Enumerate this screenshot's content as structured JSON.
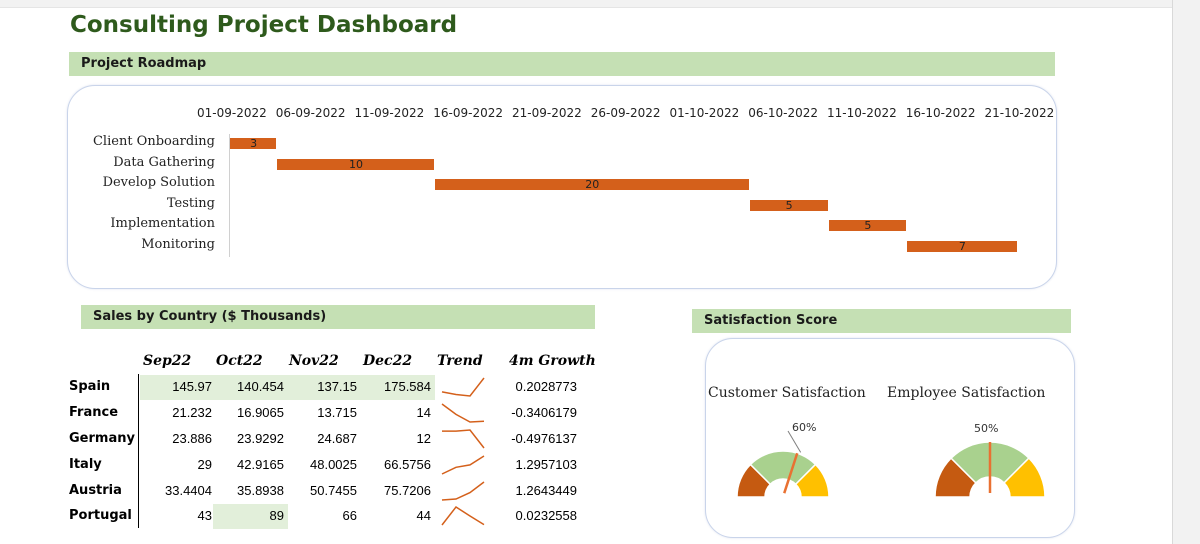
{
  "dashboard": {
    "title": "Consulting Project Dashboard"
  },
  "roadmap": {
    "header": "Project Roadmap",
    "dates": [
      "01-09-2022",
      "06-09-2022",
      "11-09-2022",
      "16-09-2022",
      "21-09-2022",
      "26-09-2022",
      "01-10-2022",
      "06-10-2022",
      "11-10-2022",
      "16-10-2022",
      "21-10-2022"
    ],
    "tasks": [
      {
        "name": "Client Onboarding",
        "start_day": 0,
        "duration": 3,
        "label": "3"
      },
      {
        "name": "Data Gathering",
        "start_day": 3,
        "duration": 10,
        "label": "10"
      },
      {
        "name": "Develop Solution",
        "start_day": 13,
        "duration": 20,
        "label": "20"
      },
      {
        "name": "Testing",
        "start_day": 33,
        "duration": 5,
        "label": "5"
      },
      {
        "name": "Implementation",
        "start_day": 38,
        "duration": 5,
        "label": "5"
      },
      {
        "name": "Monitoring",
        "start_day": 43,
        "duration": 7,
        "label": "7"
      }
    ],
    "bar_color": "#d4601b"
  },
  "sales": {
    "header": "Sales by Country ($ Thousands)",
    "columns": [
      "Sep22",
      "Oct22",
      "Nov22",
      "Dec22",
      "Trend",
      "4m Growth"
    ],
    "rows": [
      {
        "country": "Spain",
        "values": [
          "145.97",
          "140.454",
          "137.15",
          "175.584"
        ],
        "series": [
          145.97,
          140.454,
          137.15,
          175.584
        ],
        "growth": "0.2028773"
      },
      {
        "country": "France",
        "values": [
          "21.232",
          "16.9065",
          "13.715",
          "14"
        ],
        "series": [
          21.232,
          16.9065,
          13.715,
          14
        ],
        "growth": "-0.3406179"
      },
      {
        "country": "Germany",
        "values": [
          "23.886",
          "23.9292",
          "24.687",
          "12"
        ],
        "series": [
          23.886,
          23.9292,
          24.687,
          12
        ],
        "growth": "-0.4976137"
      },
      {
        "country": "Italy",
        "values": [
          "29",
          "42.9165",
          "48.0025",
          "66.5756"
        ],
        "series": [
          29,
          42.9165,
          48.0025,
          66.5756
        ],
        "growth": "1.2957103"
      },
      {
        "country": "Austria",
        "values": [
          "33.4404",
          "35.8938",
          "50.7455",
          "75.7206"
        ],
        "series": [
          33.4404,
          35.8938,
          50.7455,
          75.7206
        ],
        "growth": "1.2643449"
      },
      {
        "country": "Portugal",
        "values": [
          "43",
          "89",
          "66",
          "44"
        ],
        "series": [
          43,
          89,
          66,
          44
        ],
        "growth": "0.0232558"
      }
    ],
    "highlight_cells": [
      [
        0,
        0
      ],
      [
        0,
        1
      ],
      [
        0,
        2
      ],
      [
        0,
        3
      ],
      [
        5,
        1
      ]
    ],
    "highlight_color": "#e2efda",
    "spark_color": "#d4601b"
  },
  "satisfaction": {
    "header": "Satisfaction Score",
    "gauges": [
      {
        "title": "Customer Satisfaction",
        "value": 0.6,
        "label": "60%"
      },
      {
        "title": "Employee Satisfaction",
        "value": 0.5,
        "label": "50%"
      }
    ],
    "colors": {
      "low": "#c55a11",
      "mid": "#a9d18e",
      "high": "#ffc000",
      "needle": "#e97132"
    }
  }
}
